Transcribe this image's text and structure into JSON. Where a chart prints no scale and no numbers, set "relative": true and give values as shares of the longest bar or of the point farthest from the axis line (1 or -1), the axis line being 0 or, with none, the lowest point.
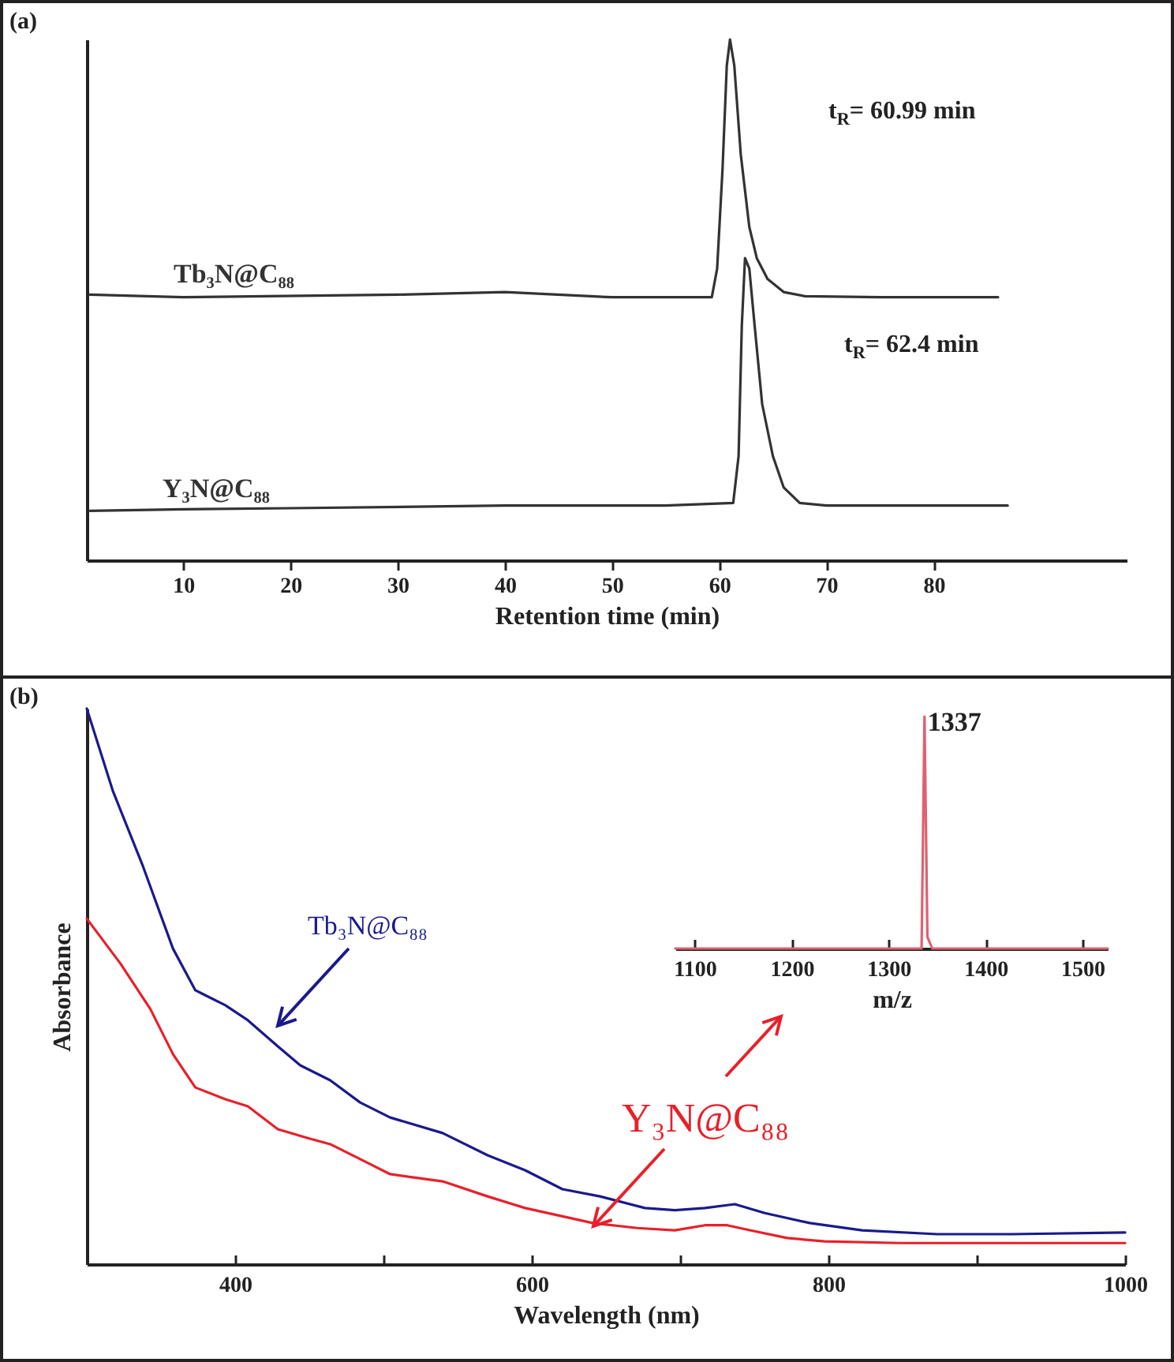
{
  "chart_data": [
    {
      "type": "line",
      "title": "(a)",
      "xlabel": "Retention time (min)",
      "relative": true,
      "tick_labels": "x",
      "xlim": [
        1,
        98
      ],
      "xticks": [
        10,
        20,
        30,
        40,
        50,
        60,
        70,
        80
      ],
      "annotations": [
        "t$_{R}$= 60.99 min",
        "t$_{R}$= 62.4 min"
      ],
      "series": [
        {
          "name": "Tb₃N@C₈₈",
          "color": "#333333",
          "x": [
            1.3,
            10,
            30,
            40,
            50,
            59.3,
            59.8,
            60.3,
            60.7,
            61,
            61.4,
            62,
            62.8,
            63.5,
            64.5,
            66,
            68,
            75,
            86
          ],
          "values": [
            0.51,
            0.505,
            0.51,
            0.515,
            0.505,
            0.505,
            0.56,
            0.75,
            0.95,
            1,
            0.95,
            0.78,
            0.64,
            0.58,
            0.54,
            0.515,
            0.507,
            0.505,
            0.505
          ]
        },
        {
          "name": "Y₃N@C₈₈",
          "color": "#333333",
          "x": [
            1.3,
            10,
            20,
            40,
            55,
            61.3,
            61.8,
            62.1,
            62.4,
            62.8,
            63.3,
            64,
            65,
            66,
            67.5,
            70,
            86.9
          ],
          "values": [
            0.095,
            0.098,
            0.1,
            0.105,
            0.105,
            0.11,
            0.2,
            0.45,
            0.58,
            0.56,
            0.45,
            0.3,
            0.2,
            0.14,
            0.11,
            0.105,
            0.105
          ]
        }
      ]
    },
    {
      "type": "line",
      "title": "(b)",
      "xlabel": "Wavelength (nm)",
      "ylabel": "Absorbance",
      "relative": true,
      "tick_labels": "x",
      "xlim": [
        300,
        1000
      ],
      "xticks": [
        400,
        {
          "value": 500,
          "label": null
        },
        600,
        {
          "value": 700,
          "label": null
        },
        800,
        {
          "value": 900,
          "label": null
        },
        1000
      ],
      "series": [
        {
          "name": "Tb₃N@C₈₈",
          "color": "#1a1a8c",
          "x": [
            300,
            317.7,
            337.9,
            358.1,
            373.2,
            393.4,
            408.6,
            428.8,
            443.9,
            464.1,
            484.3,
            504.5,
            539.9,
            570.2,
            595.5,
            620.7,
            646,
            676.3,
            696.5,
            716.7,
            736.9,
            757.1,
            787.4,
            822.7,
            873.2,
            923.7,
            1000
          ],
          "values": [
            1,
            0.851,
            0.716,
            0.568,
            0.493,
            0.466,
            0.439,
            0.392,
            0.358,
            0.331,
            0.291,
            0.264,
            0.236,
            0.196,
            0.169,
            0.135,
            0.122,
            0.101,
            0.097,
            0.101,
            0.108,
            0.092,
            0.074,
            0.061,
            0.054,
            0.054,
            0.057
          ]
        },
        {
          "name": "Y₃N@C₈₈",
          "color": "#e8202a",
          "x": [
            300,
            322.7,
            342.9,
            358.1,
            373.2,
            393.4,
            408.6,
            428.8,
            449,
            464.1,
            484.3,
            504.5,
            539.9,
            570.2,
            595.5,
            641,
            671.2,
            696.5,
            716.7,
            731.8,
            747,
            772.2,
            797.5,
            848,
            1000
          ],
          "values": [
            0.622,
            0.541,
            0.459,
            0.378,
            0.318,
            0.297,
            0.284,
            0.243,
            0.227,
            0.216,
            0.189,
            0.162,
            0.149,
            0.122,
            0.101,
            0.074,
            0.065,
            0.061,
            0.07,
            0.07,
            0.061,
            0.047,
            0.041,
            0.038,
            0.038
          ]
        }
      ]
    },
    {
      "type": "line",
      "xlabel": "m/z",
      "relative": true,
      "tick_labels": "x",
      "xlim": [
        1080,
        1526
      ],
      "xticks": [
        1100,
        1200,
        1300,
        1400,
        1500
      ],
      "annotations": [
        {
          "text": "1337",
          "x": 1337,
          "y": 1
        }
      ],
      "series": [
        {
          "color": "#e06070",
          "x": [
            1080,
            1334,
            1337,
            1340,
            1345,
            1526
          ],
          "values": [
            0,
            0,
            1,
            0.05,
            0,
            0
          ]
        }
      ]
    }
  ]
}
